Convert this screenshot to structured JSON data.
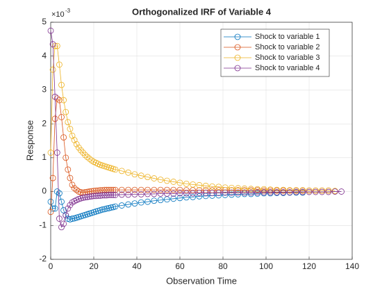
{
  "chart_data": {
    "type": "line",
    "title": "Orthogonalized IRF of Variable 4",
    "xlabel": "Observation Time",
    "ylabel": "Response",
    "y_multiplier": {
      "base": "×10",
      "exponent": "-3"
    },
    "xlim": [
      0,
      140
    ],
    "xticks": [
      0,
      20,
      40,
      60,
      80,
      100,
      120,
      140
    ],
    "ylim": [
      -2,
      5
    ],
    "yticks": [
      -2,
      -1,
      0,
      1,
      2,
      3,
      4,
      5
    ],
    "grid": true,
    "legend": "northeast",
    "marker": "circle",
    "x": [
      0,
      1,
      2,
      3,
      4,
      5,
      6,
      7,
      8,
      9,
      10,
      11,
      12,
      13,
      14,
      15,
      16,
      17,
      18,
      19,
      20,
      21,
      22,
      23,
      24,
      25,
      26,
      27,
      28,
      29,
      30,
      33,
      36,
      39,
      42,
      45,
      48,
      51,
      54,
      57,
      60,
      63,
      66,
      69,
      72,
      75,
      78,
      81,
      84,
      87,
      90,
      93,
      96,
      99,
      102,
      105,
      108,
      111,
      114,
      117,
      120,
      123,
      126,
      129,
      132,
      135
    ],
    "series": [
      {
        "name": "Shock to variable 1",
        "color": "#0072BD",
        "values": [
          -0.3,
          -0.5,
          -0.5,
          0,
          -0.05,
          -0.3,
          -0.55,
          -0.7,
          -0.8,
          -0.82,
          -0.8,
          -0.79,
          -0.77,
          -0.75,
          -0.73,
          -0.71,
          -0.69,
          -0.67,
          -0.65,
          -0.63,
          -0.61,
          -0.59,
          -0.57,
          -0.55,
          -0.53,
          -0.52,
          -0.5,
          -0.49,
          -0.47,
          -0.46,
          -0.44,
          -0.41,
          -0.38,
          -0.35,
          -0.32,
          -0.3,
          -0.27,
          -0.25,
          -0.23,
          -0.21,
          -0.19,
          -0.17,
          -0.16,
          -0.14,
          -0.13,
          -0.12,
          -0.11,
          -0.1,
          -0.09,
          -0.08,
          -0.07,
          -0.07,
          -0.06,
          -0.05,
          -0.05,
          -0.04,
          -0.04,
          -0.03,
          -0.03,
          -0.03,
          null,
          null,
          null,
          null,
          null,
          null
        ]
      },
      {
        "name": "Shock to variable 2",
        "color": "#D95319",
        "values": [
          -0.6,
          0.4,
          2.15,
          2.75,
          2.7,
          2.2,
          1.6,
          1.0,
          0.65,
          0.4,
          0.2,
          0.1,
          0.05,
          0,
          -0.02,
          -0.03,
          -0.02,
          -0.01,
          0,
          0.01,
          0.02,
          0.03,
          0.03,
          0.04,
          0.04,
          0.05,
          0.05,
          0.05,
          0.05,
          0.05,
          0.05,
          0.05,
          0.05,
          0.05,
          0.05,
          0.05,
          0.05,
          0.05,
          0.05,
          0.05,
          0.05,
          0.04,
          0.04,
          0.04,
          0.04,
          0.04,
          0.04,
          0.04,
          0.04,
          0.04,
          0.04,
          0.04,
          0.04,
          0.03,
          0.03,
          0.03,
          0.03,
          0.03,
          0.03,
          0.03,
          0.03,
          0.03,
          0.03,
          0.03,
          null,
          null
        ]
      },
      {
        "name": "Shock to variable 3",
        "color": "#EDB120",
        "values": [
          1.15,
          3.6,
          4.3,
          4.3,
          3.75,
          3.15,
          2.7,
          2.35,
          2.05,
          1.85,
          1.65,
          1.52,
          1.4,
          1.3,
          1.22,
          1.15,
          1.08,
          1.02,
          0.97,
          0.92,
          0.88,
          0.85,
          0.82,
          0.79,
          0.77,
          0.75,
          0.73,
          0.71,
          0.69,
          0.67,
          0.65,
          0.61,
          0.56,
          0.51,
          0.47,
          0.43,
          0.39,
          0.35,
          0.32,
          0.29,
          0.26,
          0.23,
          0.21,
          0.19,
          0.17,
          0.15,
          0.14,
          0.12,
          0.11,
          0.1,
          0.09,
          0.08,
          0.07,
          0.07,
          0.06,
          0.05,
          0.05,
          0.04,
          0.04,
          0.04,
          0.03,
          0.03,
          0.03,
          0.03,
          0.02,
          null
        ]
      },
      {
        "name": "Shock to variable 4",
        "color": "#7E2F8E",
        "values": [
          4.75,
          4.35,
          2.8,
          1.15,
          -0.8,
          -1.05,
          -0.95,
          -0.7,
          -0.5,
          -0.4,
          -0.32,
          -0.28,
          -0.25,
          -0.22,
          -0.2,
          -0.18,
          -0.17,
          -0.16,
          -0.15,
          -0.14,
          -0.13,
          -0.13,
          -0.12,
          -0.12,
          -0.11,
          -0.11,
          -0.11,
          -0.1,
          -0.1,
          -0.1,
          -0.1,
          -0.09,
          -0.09,
          -0.08,
          -0.08,
          -0.07,
          -0.07,
          -0.06,
          -0.06,
          -0.06,
          -0.05,
          -0.05,
          -0.05,
          -0.04,
          -0.04,
          -0.04,
          -0.04,
          -0.03,
          -0.03,
          -0.03,
          -0.03,
          -0.03,
          -0.02,
          -0.02,
          -0.02,
          -0.02,
          -0.02,
          -0.02,
          -0.01,
          -0.01,
          -0.01,
          -0.01,
          -0.01,
          -0.01,
          0,
          0
        ]
      }
    ]
  }
}
